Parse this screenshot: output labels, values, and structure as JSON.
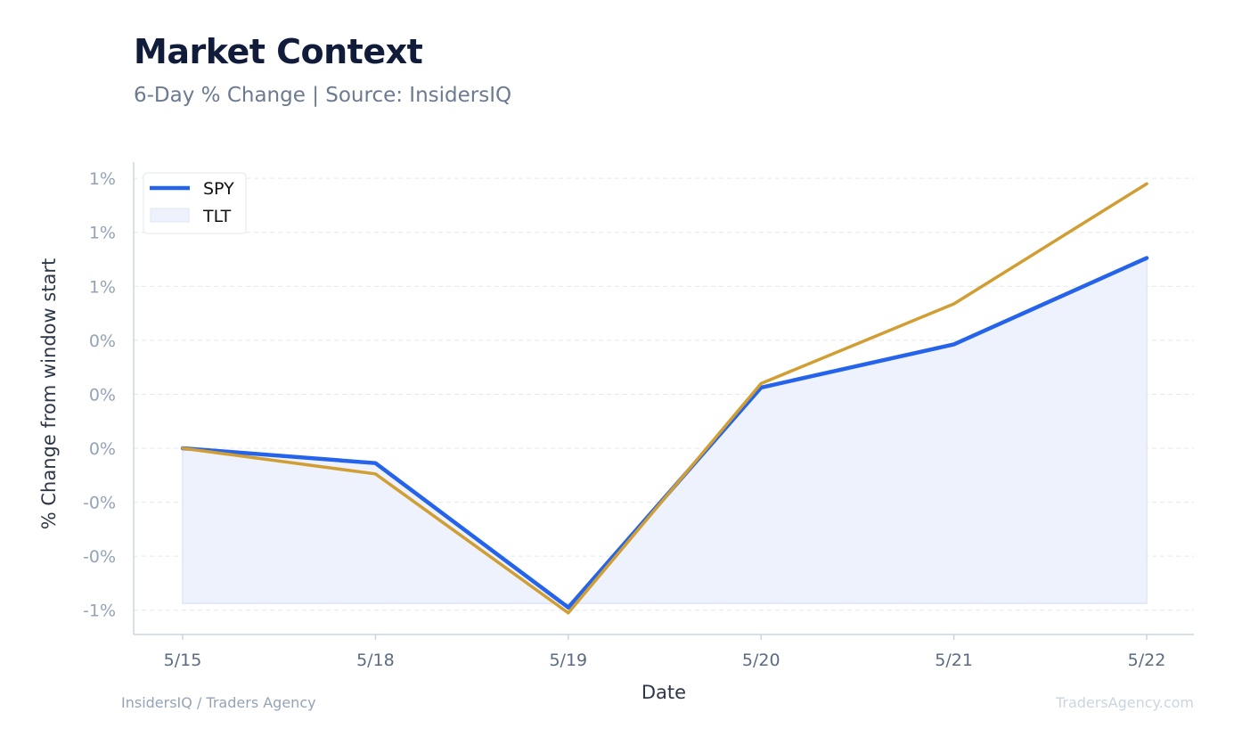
{
  "header": {
    "title": "Market Context",
    "subtitle": "6-Day % Change | Source: InsidersIQ"
  },
  "footer": {
    "left": "InsidersIQ / Traders Agency",
    "right": "TradersAgency.com"
  },
  "colors": {
    "spy": "#2563eb",
    "tlt": "#d19e33",
    "fill": "#eef2fc",
    "grid": "#e5e7eb",
    "axis": "#cbd5e1"
  },
  "chart_data": {
    "type": "line",
    "xlabel": "Date",
    "ylabel": "% Change from window start",
    "categories": [
      "5/15",
      "5/18",
      "5/19",
      "5/20",
      "5/21",
      "5/22"
    ],
    "y_ticks": [
      {
        "value": -0.6,
        "label": "-1%"
      },
      {
        "value": -0.4,
        "label": "-0%"
      },
      {
        "value": -0.2,
        "label": "-0%"
      },
      {
        "value": 0.0,
        "label": "0%"
      },
      {
        "value": 0.2,
        "label": "0%"
      },
      {
        "value": 0.4,
        "label": "0%"
      },
      {
        "value": 0.6,
        "label": "1%"
      },
      {
        "value": 0.8,
        "label": "1%"
      },
      {
        "value": 1.0,
        "label": "1%"
      }
    ],
    "ylim": [
      -0.69,
      1.06
    ],
    "grid": true,
    "legend_position": "top-left",
    "series": [
      {
        "name": "SPY",
        "values": [
          0.0,
          -0.055,
          -0.59,
          0.225,
          0.385,
          0.705
        ],
        "style": "line"
      },
      {
        "name": "TLT",
        "values": [
          0.0,
          -0.095,
          -0.61,
          0.24,
          0.535,
          0.98
        ],
        "style": "line"
      }
    ],
    "area": {
      "series": "SPY",
      "baseline": -0.575
    },
    "legend": [
      {
        "name": "SPY",
        "marker": "line"
      },
      {
        "name": "TLT",
        "marker": "box"
      }
    ]
  }
}
